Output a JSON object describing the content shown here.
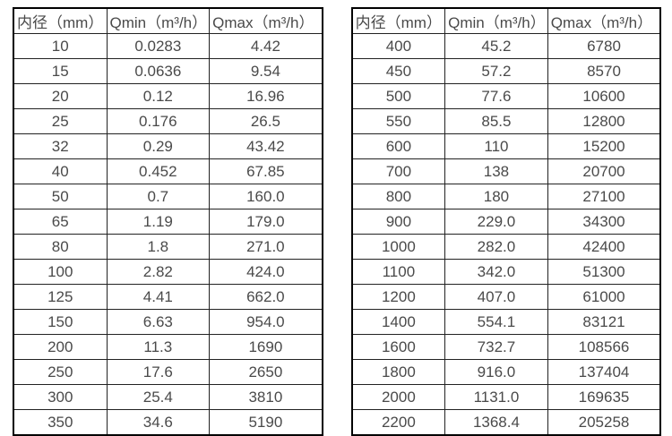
{
  "page": {
    "background_color": "#ffffff",
    "border_color": "#000000",
    "grid_line_color": "#222222",
    "text_color": "#4a4a4a"
  },
  "tables": [
    {
      "name": "flow-rate-table-small-diameters",
      "headers": [
        "内径（mm）",
        "Qmin（m³/h）",
        "Qmax（m³/h）"
      ],
      "rows": [
        [
          "10",
          "0.0283",
          "4.42"
        ],
        [
          "15",
          "0.0636",
          "9.54"
        ],
        [
          "20",
          "0.12",
          "16.96"
        ],
        [
          "25",
          "0.176",
          "26.5"
        ],
        [
          "32",
          "0.29",
          "43.42"
        ],
        [
          "40",
          "0.452",
          "67.85"
        ],
        [
          "50",
          "0.7",
          "160.0"
        ],
        [
          "65",
          "1.19",
          "179.0"
        ],
        [
          "80",
          "1.8",
          "271.0"
        ],
        [
          "100",
          "2.82",
          "424.0"
        ],
        [
          "125",
          "4.41",
          "662.0"
        ],
        [
          "150",
          "6.63",
          "954.0"
        ],
        [
          "200",
          "11.3",
          "1690"
        ],
        [
          "250",
          "17.6",
          "2650"
        ],
        [
          "300",
          "25.4",
          "3810"
        ],
        [
          "350",
          "34.6",
          "5190"
        ]
      ]
    },
    {
      "name": "flow-rate-table-large-diameters",
      "headers": [
        "内径（mm）",
        "Qmin（m³/h）",
        "Qmax（m³/h）"
      ],
      "rows": [
        [
          "400",
          "45.2",
          "6780"
        ],
        [
          "450",
          "57.2",
          "8570"
        ],
        [
          "500",
          "77.6",
          "10600"
        ],
        [
          "550",
          "85.5",
          "12800"
        ],
        [
          "600",
          "110",
          "15200"
        ],
        [
          "700",
          "138",
          "20700"
        ],
        [
          "800",
          "180",
          "27100"
        ],
        [
          "900",
          "229.0",
          "34300"
        ],
        [
          "1000",
          "282.0",
          "42400"
        ],
        [
          "1100",
          "342.0",
          "51300"
        ],
        [
          "1200",
          "407.0",
          "61000"
        ],
        [
          "1400",
          "554.1",
          "83121"
        ],
        [
          "1600",
          "732.7",
          "108566"
        ],
        [
          "1800",
          "916.0",
          "137404"
        ],
        [
          "2000",
          "1131.0",
          "169635"
        ],
        [
          "2200",
          "1368.4",
          "205258"
        ]
      ]
    }
  ]
}
